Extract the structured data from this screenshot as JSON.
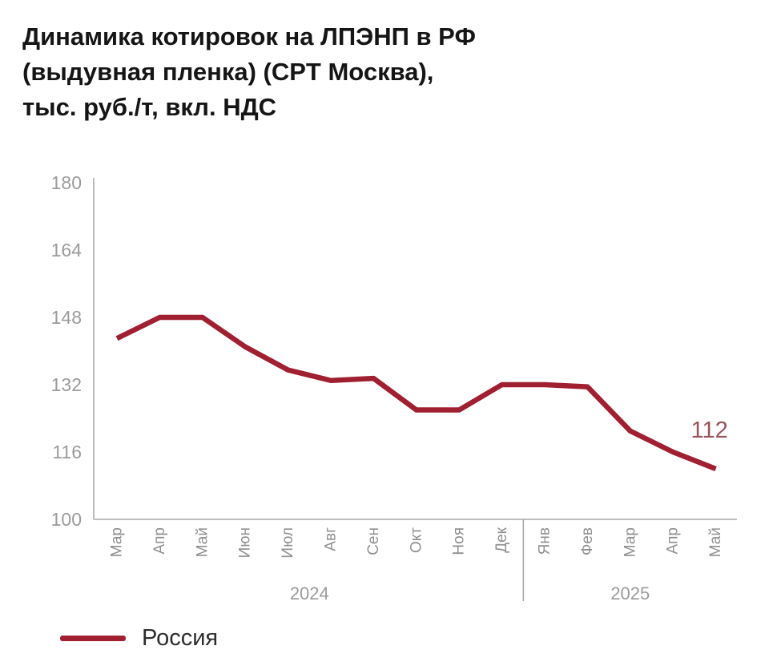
{
  "title": "Динамика котировок на ЛПЭНП в РФ\n(выдувная пленка) (CPT Москва),\nтыс. руб./т, вкл. НДС",
  "legend": {
    "series_label": "Россия"
  },
  "colors": {
    "line": "#a02031",
    "axis": "#a9a9a9",
    "tick_text": "#9b9b9b",
    "month_text": "#8f8f8f",
    "year_text": "#9b9b9b",
    "title_text": "#151515",
    "annotation_text": "#9a555b",
    "legend_text": "#2d2d2d",
    "background": "#ffffff"
  },
  "chart_data": {
    "type": "line",
    "title": "Динамика котировок на ЛПЭНП в РФ (выдувная пленка) (CPT Москва), тыс. руб./т, вкл. НДС",
    "categories": [
      "Мар",
      "Апр",
      "Май",
      "Июн",
      "Июл",
      "Авг",
      "Сен",
      "Окт",
      "Ноя",
      "Дек",
      "Янв",
      "Фев",
      "Мар",
      "Апр",
      "Май"
    ],
    "year_groups": [
      {
        "label": "2024",
        "start": 0,
        "count": 10
      },
      {
        "label": "2025",
        "start": 10,
        "count": 5
      }
    ],
    "series": [
      {
        "name": "Россия",
        "color": "#a02031",
        "values": [
          143,
          148,
          148,
          141,
          135.5,
          133,
          133.5,
          126,
          126,
          132,
          132,
          131.5,
          121,
          116,
          112
        ]
      }
    ],
    "xlabel": "",
    "ylabel": "",
    "ylim": [
      100,
      180
    ],
    "yticks": [
      100,
      116,
      132,
      148,
      164,
      180
    ],
    "grid": false,
    "legend_position": "bottom-left",
    "annotations": [
      {
        "text": "112",
        "series": "Россия",
        "point_index": 14
      }
    ]
  }
}
